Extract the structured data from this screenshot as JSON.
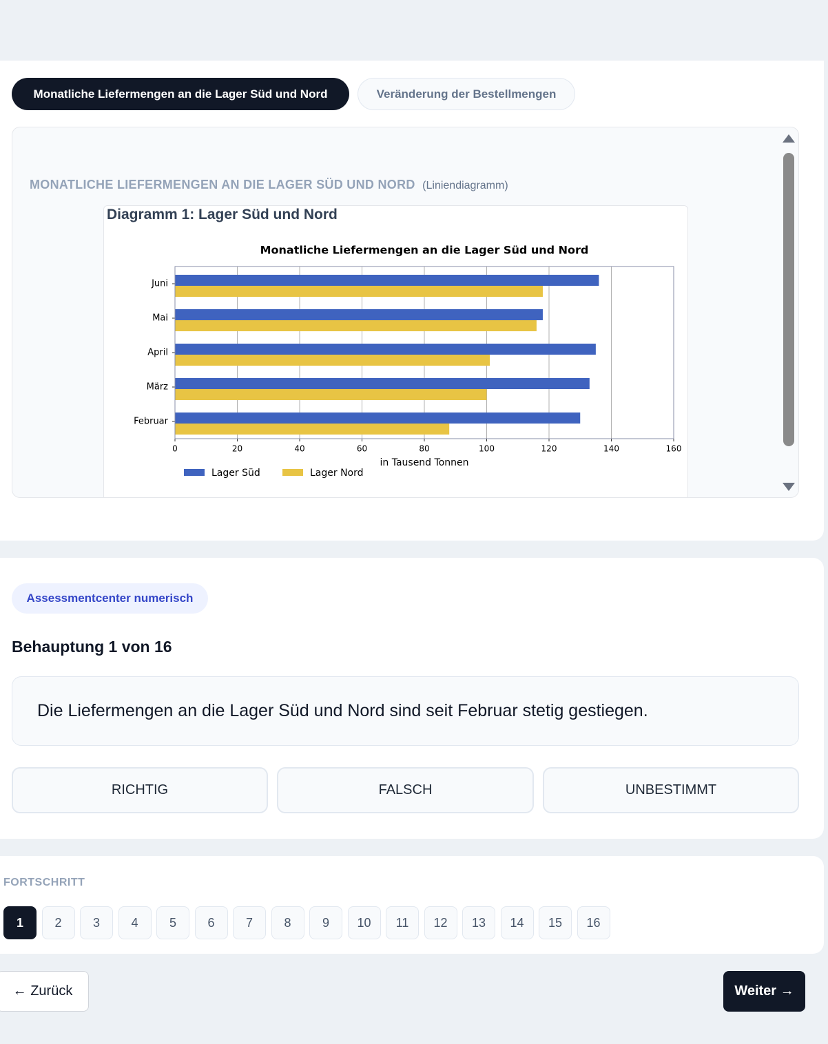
{
  "tabs": [
    "Monatliche Liefermengen an die Lager Süd und Nord",
    "Veränderung der Bestellmengen"
  ],
  "panel": {
    "heading": "MONATLICHE LIEFERMENGEN AN DIE LAGER SÜD UND NORD",
    "kind": "(Liniendiagramm)",
    "caption": "Diagramm 1: Lager Süd und Nord"
  },
  "chart_data": {
    "type": "barh",
    "title": "Monatliche Liefermengen an die Lager Süd und Nord",
    "x_label": "in Tausend Tonnen",
    "categories": [
      "Februar",
      "März",
      "April",
      "Mai",
      "Juni"
    ],
    "series": [
      {
        "name": "Lager Süd",
        "color": "#3f63bf",
        "values": [
          130,
          133,
          135,
          118,
          136
        ]
      },
      {
        "name": "Lager Nord",
        "color": "#e8c444",
        "values": [
          88,
          100,
          101,
          116,
          118
        ]
      }
    ],
    "xlim": [
      0,
      160
    ],
    "xticks": [
      0,
      20,
      40,
      60,
      80,
      100,
      120,
      140,
      160
    ],
    "grid": true,
    "legend": "lower left"
  },
  "badge": "Assessmentcenter numerisch",
  "question": {
    "counter": "Behauptung 1 von 16",
    "statement": "Die Liefermengen an die Lager Süd und Nord sind seit Februar stetig gestiegen."
  },
  "answers": [
    "RICHTIG",
    "FALSCH",
    "UNBESTIMMT"
  ],
  "progress": {
    "label": "FORTSCHRITT",
    "steps": [
      1,
      2,
      3,
      4,
      5,
      6,
      7,
      8,
      9,
      10,
      11,
      12,
      13,
      14,
      15,
      16
    ],
    "current": 1
  },
  "nav": {
    "back": "← Zurück",
    "next": "Weiter →"
  }
}
